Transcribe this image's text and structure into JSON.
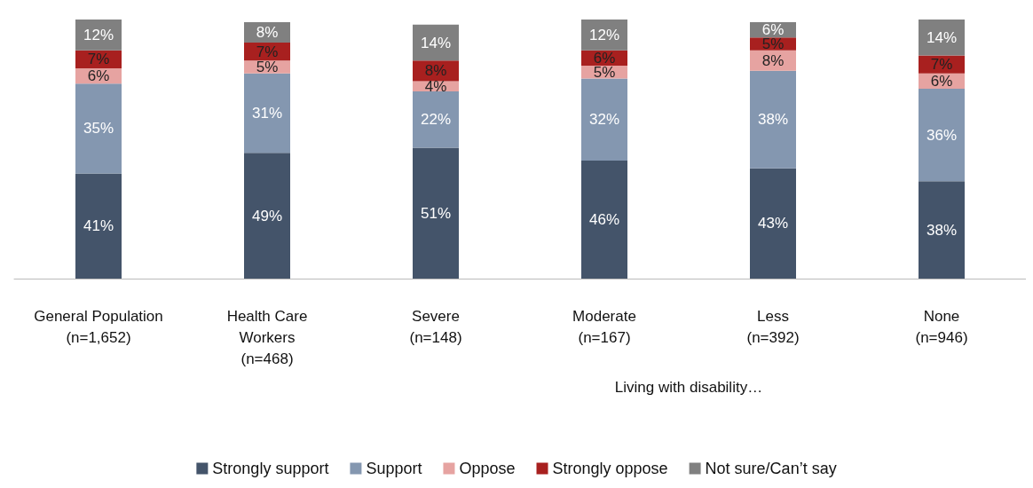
{
  "chart_data": {
    "type": "bar",
    "stacked": true,
    "legend": "bottom",
    "categories": [
      "General Population\n(n=1,652)",
      "Health Care\nWorkers\n(n=468)",
      "Severe\n(n=148)",
      "Moderate\n(n=167)",
      "Less\n(n=392)",
      "None\n(n=946)"
    ],
    "annotations": [
      "Living with disability…"
    ],
    "series": [
      {
        "name": "Strongly support",
        "color": "#44546a",
        "values": [
          41,
          49,
          51,
          46,
          43,
          38
        ],
        "value_labels": [
          "41%",
          "49%",
          "51%",
          "46%",
          "43%",
          "38%"
        ]
      },
      {
        "name": "Support",
        "color": "#8497b0",
        "values": [
          35,
          31,
          22,
          32,
          38,
          36
        ],
        "value_labels": [
          "35%",
          "31%",
          "22%",
          "32%",
          "38%",
          "36%"
        ]
      },
      {
        "name": "Oppose",
        "color": "#e6a3a1",
        "values": [
          6,
          5,
          4,
          5,
          8,
          6
        ],
        "value_labels": [
          "6%",
          "5%",
          "4%",
          "5%",
          "8%",
          "6%"
        ]
      },
      {
        "name": "Strongly oppose",
        "color": "#a8201f",
        "values": [
          7,
          7,
          8,
          6,
          5,
          7
        ],
        "value_labels": [
          "7%",
          "7%",
          "8%",
          "6%",
          "5%",
          "7%"
        ]
      },
      {
        "name": "Not sure/Can’t say",
        "color": "#808080",
        "values": [
          12,
          8,
          14,
          12,
          6,
          14
        ],
        "value_labels": [
          "12%",
          "8%",
          "14%",
          "12%",
          "6%",
          "14%"
        ]
      }
    ]
  }
}
